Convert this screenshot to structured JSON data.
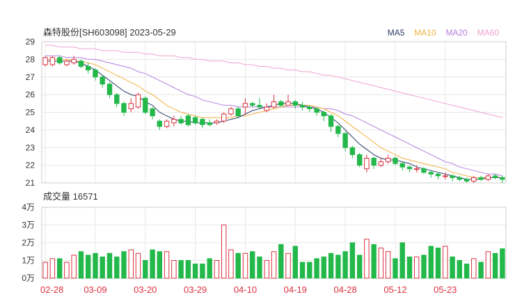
{
  "title": "森特股份[SH603098] 2023-05-29",
  "volume_title": "成交量 16571",
  "legend": [
    {
      "label": "MA5",
      "color": "#2b3a67"
    },
    {
      "label": "MA10",
      "color": "#f0b040"
    },
    {
      "label": "MA20",
      "color": "#b27ee0"
    },
    {
      "label": "MA60",
      "color": "#f0a0d0"
    }
  ],
  "colors": {
    "up": "#d9303e",
    "down": "#22b84a",
    "grid": "#e6e6e6",
    "axis": "#999999"
  },
  "chart_data": {
    "type": "candlestick",
    "price_axis": {
      "min": 21,
      "max": 29,
      "ticks": [
        "29",
        "28",
        "27",
        "26",
        "25",
        "24",
        "23",
        "22",
        "21"
      ]
    },
    "volume_axis": {
      "min": 0,
      "max": 40000,
      "ticks": [
        "4万",
        "3万",
        "2万",
        "1万",
        "0万"
      ]
    },
    "x_labels": [
      {
        "index": 0,
        "label": "02-28"
      },
      {
        "index": 7,
        "label": "03-09"
      },
      {
        "index": 14,
        "label": "03-20"
      },
      {
        "index": 21,
        "label": "03-29"
      },
      {
        "index": 28,
        "label": "04-10"
      },
      {
        "index": 35,
        "label": "04-19"
      },
      {
        "index": 42,
        "label": "04-28"
      },
      {
        "index": 49,
        "label": "05-12"
      },
      {
        "index": 56,
        "label": "05-23"
      }
    ],
    "candles": [
      [
        27.7,
        28.1,
        28.2,
        27.6,
        9000
      ],
      [
        27.7,
        28.1,
        28.2,
        27.6,
        11000
      ],
      [
        28.1,
        27.8,
        28.2,
        27.7,
        11000
      ],
      [
        27.7,
        27.9,
        28.0,
        27.6,
        9000
      ],
      [
        27.8,
        28.0,
        28.2,
        27.7,
        13000
      ],
      [
        27.9,
        27.6,
        28.0,
        27.5,
        15000
      ],
      [
        27.6,
        27.4,
        27.8,
        27.2,
        13000
      ],
      [
        27.4,
        27.0,
        27.5,
        26.8,
        14000
      ],
      [
        27.0,
        26.6,
        27.1,
        26.4,
        12000
      ],
      [
        26.6,
        26.0,
        26.7,
        25.8,
        14000
      ],
      [
        26.0,
        25.5,
        26.1,
        25.3,
        12000
      ],
      [
        25.5,
        25.0,
        25.6,
        24.8,
        15000
      ],
      [
        25.2,
        25.5,
        25.8,
        25.0,
        16000
      ],
      [
        25.3,
        26.0,
        26.1,
        25.2,
        14000
      ],
      [
        25.8,
        25.0,
        25.9,
        24.9,
        10000
      ],
      [
        25.2,
        24.8,
        25.3,
        24.6,
        16000
      ],
      [
        24.5,
        24.2,
        24.6,
        24.0,
        15000
      ],
      [
        24.2,
        24.5,
        24.6,
        24.1,
        15000
      ],
      [
        24.4,
        24.6,
        24.8,
        24.2,
        10000
      ],
      [
        24.6,
        24.4,
        24.8,
        24.3,
        10000
      ],
      [
        24.8,
        24.3,
        24.9,
        24.2,
        10000
      ],
      [
        24.7,
        24.4,
        24.8,
        24.3,
        8000
      ],
      [
        24.6,
        24.3,
        24.7,
        24.1,
        8000
      ],
      [
        24.4,
        24.3,
        24.6,
        24.2,
        11000
      ],
      [
        24.4,
        24.5,
        24.6,
        24.3,
        10000
      ],
      [
        24.5,
        24.9,
        25.0,
        24.4,
        30000
      ],
      [
        24.9,
        25.2,
        25.3,
        24.8,
        16000
      ],
      [
        25.2,
        24.8,
        25.3,
        24.7,
        14000
      ],
      [
        25.3,
        25.5,
        25.8,
        24.9,
        14000
      ],
      [
        25.5,
        25.4,
        25.6,
        25.3,
        15000
      ],
      [
        25.4,
        25.3,
        25.8,
        25.2,
        12000
      ],
      [
        25.1,
        25.3,
        25.5,
        25.0,
        10000
      ],
      [
        25.3,
        25.6,
        26.0,
        25.2,
        15000
      ],
      [
        25.6,
        25.4,
        25.7,
        25.3,
        19000
      ],
      [
        25.4,
        25.6,
        26.0,
        25.4,
        14000
      ],
      [
        25.6,
        25.4,
        25.7,
        25.2,
        18000
      ],
      [
        25.4,
        25.3,
        25.6,
        25.1,
        9000
      ],
      [
        25.3,
        25.2,
        25.4,
        25.0,
        9000
      ],
      [
        25.2,
        25.0,
        25.3,
        24.8,
        11000
      ],
      [
        25.0,
        24.8,
        25.1,
        24.5,
        12000
      ],
      [
        24.8,
        24.2,
        24.9,
        23.9,
        14000
      ],
      [
        24.2,
        23.8,
        24.3,
        23.6,
        13000
      ],
      [
        23.8,
        23.0,
        23.9,
        22.8,
        15000
      ],
      [
        23.0,
        22.6,
        23.1,
        22.4,
        20000
      ],
      [
        22.6,
        22.0,
        22.7,
        21.9,
        13000
      ],
      [
        21.8,
        22.4,
        22.6,
        21.6,
        22000
      ],
      [
        22.4,
        22.0,
        22.5,
        21.8,
        19000
      ],
      [
        22.0,
        22.2,
        22.4,
        21.9,
        17000
      ],
      [
        22.2,
        22.4,
        22.6,
        22.1,
        15000
      ],
      [
        22.4,
        22.1,
        22.5,
        22.0,
        11000
      ],
      [
        22.1,
        21.9,
        22.2,
        21.7,
        20000
      ],
      [
        21.9,
        21.8,
        22.0,
        21.6,
        12000
      ],
      [
        21.8,
        21.8,
        22.0,
        21.6,
        12000
      ],
      [
        21.8,
        21.6,
        21.9,
        21.5,
        13000
      ],
      [
        21.6,
        21.5,
        21.7,
        21.3,
        18000
      ],
      [
        21.5,
        21.4,
        21.6,
        21.2,
        17000
      ],
      [
        21.4,
        21.4,
        21.6,
        21.2,
        18000
      ],
      [
        21.4,
        21.3,
        21.5,
        21.1,
        12000
      ],
      [
        21.3,
        21.2,
        21.4,
        21.1,
        10000
      ],
      [
        21.2,
        21.1,
        21.3,
        21.0,
        8000
      ],
      [
        21.1,
        21.3,
        21.4,
        21.0,
        11000
      ],
      [
        21.3,
        21.2,
        21.4,
        21.1,
        9000
      ],
      [
        21.2,
        21.4,
        21.5,
        21.1,
        15000
      ],
      [
        21.4,
        21.3,
        21.5,
        21.2,
        14000
      ],
      [
        21.3,
        21.2,
        21.4,
        21.0,
        16571
      ]
    ],
    "ma": {
      "MA5": [
        27.9,
        27.9,
        27.9,
        27.9,
        27.9,
        27.8,
        27.6,
        27.4,
        27.1,
        26.8,
        26.5,
        26.2,
        26.0,
        25.9,
        25.6,
        25.4,
        25.0,
        24.8,
        24.6,
        24.5,
        24.5,
        24.4,
        24.4,
        24.4,
        24.4,
        24.5,
        24.6,
        24.7,
        24.9,
        25.1,
        25.2,
        25.3,
        25.4,
        25.5,
        25.5,
        25.5,
        25.4,
        25.3,
        25.2,
        25.0,
        24.7,
        24.4,
        24.0,
        23.6,
        23.2,
        22.9,
        22.6,
        22.4,
        22.3,
        22.3,
        22.2,
        22.1,
        21.9,
        21.8,
        21.7,
        21.6,
        21.5,
        21.4,
        21.3,
        21.2,
        21.2,
        21.2,
        21.3,
        21.3,
        21.3
      ],
      "MA10": [
        28.0,
        28.0,
        28.0,
        28.0,
        27.9,
        27.9,
        27.8,
        27.7,
        27.5,
        27.3,
        27.1,
        26.9,
        26.7,
        26.5,
        26.2,
        26.0,
        25.7,
        25.4,
        25.2,
        25.0,
        24.9,
        24.8,
        24.7,
        24.7,
        24.7,
        24.7,
        24.7,
        24.8,
        24.8,
        24.9,
        25.0,
        25.1,
        25.2,
        25.3,
        25.4,
        25.4,
        25.4,
        25.4,
        25.3,
        25.2,
        25.0,
        24.8,
        24.5,
        24.2,
        23.9,
        23.6,
        23.3,
        23.0,
        22.8,
        22.6,
        22.4,
        22.3,
        22.2,
        22.1,
        22.0,
        21.9,
        21.8,
        21.6,
        21.5,
        21.4,
        21.3,
        21.3,
        21.3,
        21.3,
        21.3
      ],
      "MA20": [
        28.2,
        28.2,
        28.2,
        28.1,
        28.1,
        28.1,
        28.0,
        28.0,
        27.9,
        27.8,
        27.7,
        27.6,
        27.5,
        27.3,
        27.2,
        27.0,
        26.8,
        26.6,
        26.4,
        26.2,
        26.0,
        25.9,
        25.7,
        25.6,
        25.5,
        25.4,
        25.4,
        25.3,
        25.3,
        25.3,
        25.3,
        25.3,
        25.3,
        25.3,
        25.3,
        25.3,
        25.3,
        25.3,
        25.3,
        25.2,
        25.2,
        25.1,
        24.9,
        24.8,
        24.6,
        24.4,
        24.2,
        24.0,
        23.8,
        23.6,
        23.4,
        23.2,
        23.0,
        22.8,
        22.6,
        22.4,
        22.2,
        22.1,
        21.9,
        21.8,
        21.7,
        21.6,
        21.5,
        21.5,
        21.4
      ],
      "MA60": [
        28.8,
        28.8,
        28.7,
        28.7,
        28.7,
        28.6,
        28.6,
        28.6,
        28.5,
        28.5,
        28.5,
        28.4,
        28.4,
        28.4,
        28.3,
        28.3,
        28.2,
        28.2,
        28.2,
        28.1,
        28.1,
        28.0,
        28.0,
        27.9,
        27.9,
        27.9,
        27.8,
        27.8,
        27.7,
        27.7,
        27.6,
        27.6,
        27.5,
        27.5,
        27.4,
        27.4,
        27.3,
        27.3,
        27.2,
        27.1,
        27.1,
        27.0,
        26.9,
        26.8,
        26.7,
        26.6,
        26.5,
        26.4,
        26.3,
        26.2,
        26.1,
        26.0,
        25.9,
        25.8,
        25.7,
        25.6,
        25.5,
        25.4,
        25.3,
        25.2,
        25.1,
        25.0,
        24.9,
        24.8,
        24.7
      ]
    }
  }
}
